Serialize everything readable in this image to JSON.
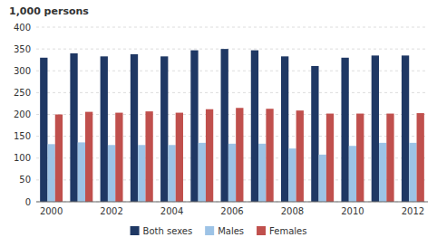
{
  "chart_data": {
    "type": "bar",
    "y_label": "1,000 persons",
    "categories": [
      "2000",
      null,
      "2002",
      null,
      "2004",
      null,
      "2006",
      null,
      "2008",
      null,
      "2010",
      null,
      "2012"
    ],
    "series": [
      {
        "name": "Both sexes",
        "color": "#1f3864",
        "values": [
          330,
          340,
          333,
          338,
          333,
          347,
          350,
          347,
          333,
          311,
          330,
          335,
          335
        ]
      },
      {
        "name": "Males",
        "color": "#9dc3e6",
        "values": [
          132,
          136,
          130,
          130,
          130,
          135,
          133,
          133,
          122,
          108,
          128,
          135,
          135
        ]
      },
      {
        "name": "Females",
        "color": "#c0504d",
        "values": [
          200,
          206,
          204,
          207,
          204,
          212,
          215,
          213,
          209,
          202,
          202,
          202,
          203
        ]
      }
    ],
    "ylim": [
      0,
      400
    ],
    "yticks": [
      0,
      50,
      100,
      150,
      200,
      250,
      300,
      350,
      400
    ],
    "grid": true,
    "legend": "bottom"
  }
}
